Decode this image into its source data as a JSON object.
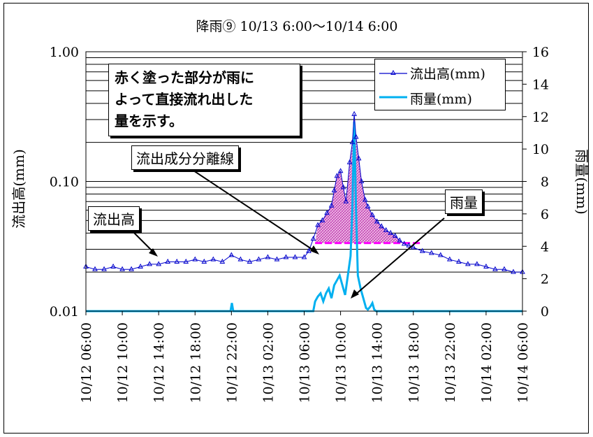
{
  "chart_data": {
    "type": "line",
    "title": "降雨⑨ 10/13 6:00～10/14 6:00",
    "ylabel_left": "流出高(mm)",
    "ylabel_right": "雨量(mm)",
    "y_left_scale": "log",
    "y_left_range": [
      0.01,
      1.0
    ],
    "y_left_ticks": [
      "1.00",
      "0.10",
      "0.01"
    ],
    "y_right_range": [
      0,
      16
    ],
    "y_right_ticks": [
      "16",
      "14",
      "12",
      "10",
      "8",
      "6",
      "4",
      "2",
      "0"
    ],
    "x_range_hours": [
      0,
      48
    ],
    "x_ticks": [
      "10/12 06:00",
      "10/12 10:00",
      "10/12 14:00",
      "10/12 18:00",
      "10/12 22:00",
      "10/13 02:00",
      "10/13 06:00",
      "10/13 10:00",
      "10/13 14:00",
      "10/13 18:00",
      "10/13 22:00",
      "10/14 02:00",
      "10/14 06:00"
    ],
    "grid": "horizontal",
    "legend_position": "top-right",
    "series": [
      {
        "name": "流出高(mm)",
        "axis": "left",
        "color": "#0000cc",
        "marker": "triangle",
        "points": [
          [
            0,
            0.022
          ],
          [
            1,
            0.021
          ],
          [
            2,
            0.021
          ],
          [
            3,
            0.022
          ],
          [
            4,
            0.021
          ],
          [
            5,
            0.021
          ],
          [
            6,
            0.022
          ],
          [
            7,
            0.023
          ],
          [
            8,
            0.023
          ],
          [
            9,
            0.024
          ],
          [
            10,
            0.024
          ],
          [
            11,
            0.024
          ],
          [
            12,
            0.025
          ],
          [
            13,
            0.024
          ],
          [
            14,
            0.025
          ],
          [
            15,
            0.024
          ],
          [
            16,
            0.027
          ],
          [
            17,
            0.025
          ],
          [
            18,
            0.024
          ],
          [
            19,
            0.025
          ],
          [
            20,
            0.026
          ],
          [
            21,
            0.025
          ],
          [
            22,
            0.026
          ],
          [
            23,
            0.026
          ],
          [
            24,
            0.026
          ],
          [
            24.5,
            0.029
          ],
          [
            25,
            0.036
          ],
          [
            25.5,
            0.046
          ],
          [
            26,
            0.05
          ],
          [
            26.5,
            0.057
          ],
          [
            27,
            0.065
          ],
          [
            27.3,
            0.085
          ],
          [
            27.6,
            0.11
          ],
          [
            28,
            0.12
          ],
          [
            28.3,
            0.09
          ],
          [
            28.6,
            0.07
          ],
          [
            29,
            0.14
          ],
          [
            29.3,
            0.2
          ],
          [
            29.5,
            0.33
          ],
          [
            29.7,
            0.22
          ],
          [
            30,
            0.15
          ],
          [
            30.3,
            0.1
          ],
          [
            30.7,
            0.072
          ],
          [
            31,
            0.064
          ],
          [
            31.5,
            0.055
          ],
          [
            32,
            0.049
          ],
          [
            32.5,
            0.045
          ],
          [
            33,
            0.042
          ],
          [
            33.5,
            0.04
          ],
          [
            34,
            0.038
          ],
          [
            34.5,
            0.035
          ],
          [
            35,
            0.033
          ],
          [
            35.5,
            0.032
          ],
          [
            36,
            0.031
          ],
          [
            37,
            0.029
          ],
          [
            38,
            0.028
          ],
          [
            39,
            0.027
          ],
          [
            40,
            0.025
          ],
          [
            41,
            0.024
          ],
          [
            42,
            0.023
          ],
          [
            43,
            0.023
          ],
          [
            44,
            0.022
          ],
          [
            45,
            0.021
          ],
          [
            46,
            0.021
          ],
          [
            47,
            0.02
          ],
          [
            48,
            0.02
          ]
        ]
      },
      {
        "name": "雨量(mm)",
        "axis": "right",
        "color": "#00b0f0",
        "points": [
          [
            0,
            0
          ],
          [
            15.9,
            0
          ],
          [
            16.05,
            0.5
          ],
          [
            16.2,
            0
          ],
          [
            25,
            0
          ],
          [
            25.2,
            0.6
          ],
          [
            25.5,
            0.9
          ],
          [
            25.8,
            1.1
          ],
          [
            26.1,
            0.6
          ],
          [
            26.4,
            1.1
          ],
          [
            26.7,
            1.4
          ],
          [
            27,
            0.8
          ],
          [
            27.3,
            1.6
          ],
          [
            27.6,
            1.9
          ],
          [
            27.9,
            2.2
          ],
          [
            28.2,
            1.6
          ],
          [
            28.5,
            1.0
          ],
          [
            28.8,
            2.2
          ],
          [
            29.1,
            3.4
          ],
          [
            29.3,
            6.4
          ],
          [
            29.5,
            11.7
          ],
          [
            29.7,
            6.3
          ],
          [
            29.9,
            2.2
          ],
          [
            30.2,
            1.4
          ],
          [
            30.5,
            0.8
          ],
          [
            30.8,
            0.2
          ],
          [
            31.0,
            0.1
          ],
          [
            31.3,
            0.3
          ],
          [
            31.5,
            0.5
          ],
          [
            31.7,
            0.1
          ],
          [
            31.9,
            0
          ],
          [
            48,
            0
          ]
        ]
      }
    ],
    "separation_line": {
      "label": "流出成分分離線",
      "color": "#ff00ff",
      "value": 0.0335,
      "x_range_hours": [
        25.2,
        36.8
      ]
    },
    "shaded_region_note": "赤く塗った部分が雨によって直接流れ出した量を示す。"
  },
  "annotations": {
    "note_line1": "赤く塗った部分が雨に",
    "note_line2": "よって直接流れ出した",
    "note_line3": "量を示す。",
    "separation_label": "流出成分分離線",
    "flow_label": "流出高",
    "rain_label": "雨量"
  },
  "colors": {
    "runoff": "#0000cc",
    "rainfall": "#00b0f0",
    "separation": "#ff00ff",
    "fill": "#d05cc0"
  }
}
